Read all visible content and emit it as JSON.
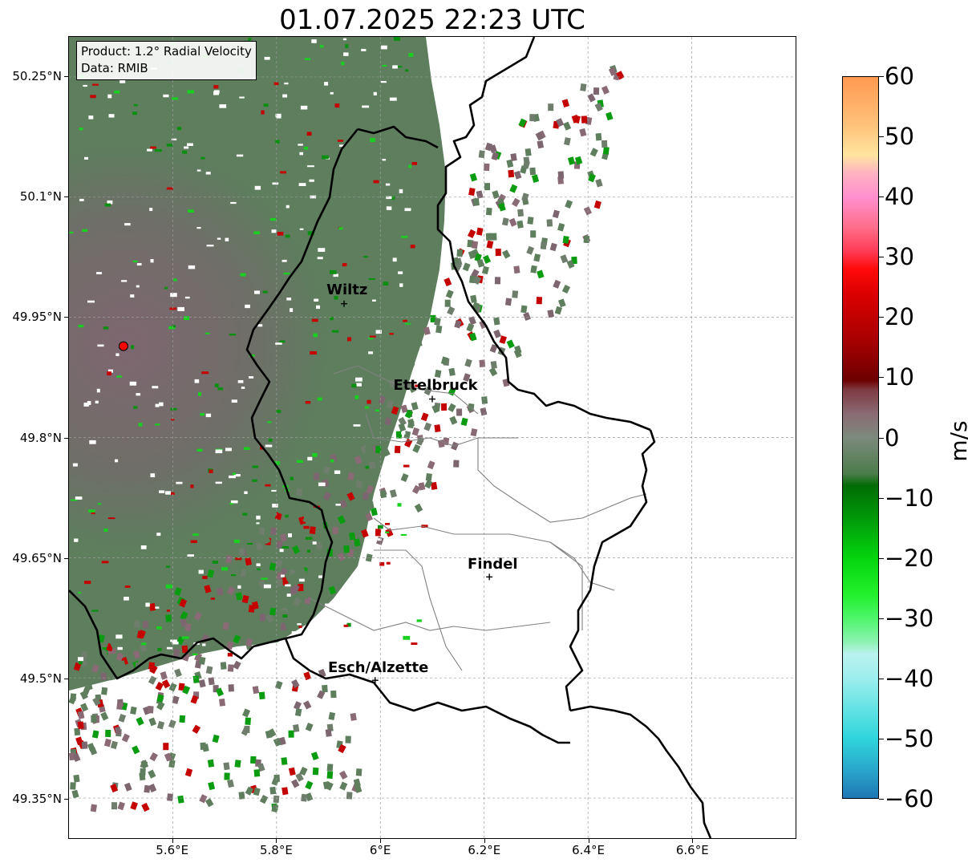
{
  "title": "01.07.2025 22:23 UTC",
  "info_box": {
    "product": "Product: 1.2° Radial Velocity",
    "data": "Data: RMIB"
  },
  "axes": {
    "lon_range": [
      5.4,
      6.8
    ],
    "lat_range": [
      49.3,
      50.3
    ],
    "x_ticks": [
      {
        "value": 5.6,
        "label": "5.6°E"
      },
      {
        "value": 5.8,
        "label": "5.8°E"
      },
      {
        "value": 6.0,
        "label": "6°E"
      },
      {
        "value": 6.2,
        "label": "6.2°E"
      },
      {
        "value": 6.4,
        "label": "6.4°E"
      },
      {
        "value": 6.6,
        "label": "6.6°E"
      }
    ],
    "y_ticks": [
      {
        "value": 50.25,
        "label": "50.25°N"
      },
      {
        "value": 50.1,
        "label": "50.1°N"
      },
      {
        "value": 49.95,
        "label": "49.95°N"
      },
      {
        "value": 49.8,
        "label": "49.8°N"
      },
      {
        "value": 49.65,
        "label": "49.65°N"
      },
      {
        "value": 49.5,
        "label": "49.5°N"
      },
      {
        "value": 49.35,
        "label": "49.35°N"
      }
    ],
    "grid": true
  },
  "cities": [
    {
      "name": "Wiltz",
      "lon": 5.93,
      "lat": 49.967
    },
    {
      "name": "Ettelbruck",
      "lon": 6.1,
      "lat": 49.848
    },
    {
      "name": "Findel",
      "lon": 6.21,
      "lat": 49.626
    },
    {
      "name": "Esch/Alzette",
      "lon": 5.99,
      "lat": 49.497
    }
  ],
  "radar_site": {
    "lon": 5.505,
    "lat": 49.914
  },
  "colorbar": {
    "label": "m/s",
    "min": -60,
    "max": 60,
    "ticks": [
      {
        "value": 60,
        "label": "60"
      },
      {
        "value": 50,
        "label": "50"
      },
      {
        "value": 40,
        "label": "40"
      },
      {
        "value": 30,
        "label": "30"
      },
      {
        "value": 20,
        "label": "20"
      },
      {
        "value": 10,
        "label": "10"
      },
      {
        "value": 0,
        "label": "0"
      },
      {
        "value": -10,
        "label": "−10"
      },
      {
        "value": -20,
        "label": "−20"
      },
      {
        "value": -30,
        "label": "−30"
      },
      {
        "value": -40,
        "label": "−40"
      },
      {
        "value": -50,
        "label": "−50"
      },
      {
        "value": -60,
        "label": "−60"
      }
    ],
    "stops": [
      {
        "value": -60,
        "color": "#1f77b4"
      },
      {
        "value": -55,
        "color": "#2aa9cc"
      },
      {
        "value": -50,
        "color": "#2fd6dc"
      },
      {
        "value": -45,
        "color": "#66e3e3"
      },
      {
        "value": -40,
        "color": "#9eeeee"
      },
      {
        "value": -36,
        "color": "#b9f2ee"
      },
      {
        "value": -34,
        "color": "#8cf2b0"
      },
      {
        "value": -30,
        "color": "#4cf56a"
      },
      {
        "value": -26,
        "color": "#21f02a"
      },
      {
        "value": -20,
        "color": "#04d40e"
      },
      {
        "value": -14,
        "color": "#019e0a"
      },
      {
        "value": -8,
        "color": "#016b03"
      },
      {
        "value": -6,
        "color": "#4c7c4c"
      },
      {
        "value": 0,
        "color": "#7c8a7c"
      },
      {
        "value": 4,
        "color": "#8a6a74"
      },
      {
        "value": 8,
        "color": "#7e3940"
      },
      {
        "value": 9.5,
        "color": "#6d0000"
      },
      {
        "value": 16,
        "color": "#a60000"
      },
      {
        "value": 24,
        "color": "#dd0000"
      },
      {
        "value": 28,
        "color": "#ff0a0a"
      },
      {
        "value": 31,
        "color": "#ff3b55"
      },
      {
        "value": 35,
        "color": "#ff6e8a"
      },
      {
        "value": 40,
        "color": "#ff8fcf"
      },
      {
        "value": 44,
        "color": "#ffb3c2"
      },
      {
        "value": 47,
        "color": "#ffe5a0"
      },
      {
        "value": 52,
        "color": "#ffc27a"
      },
      {
        "value": 57,
        "color": "#ffa860"
      },
      {
        "value": 60,
        "color": "#ff9a50"
      }
    ]
  },
  "colors": {
    "echo_green": "#5e7e5e",
    "echo_mauve": "#7e6670",
    "border": "#000000",
    "canton": "#808080"
  }
}
